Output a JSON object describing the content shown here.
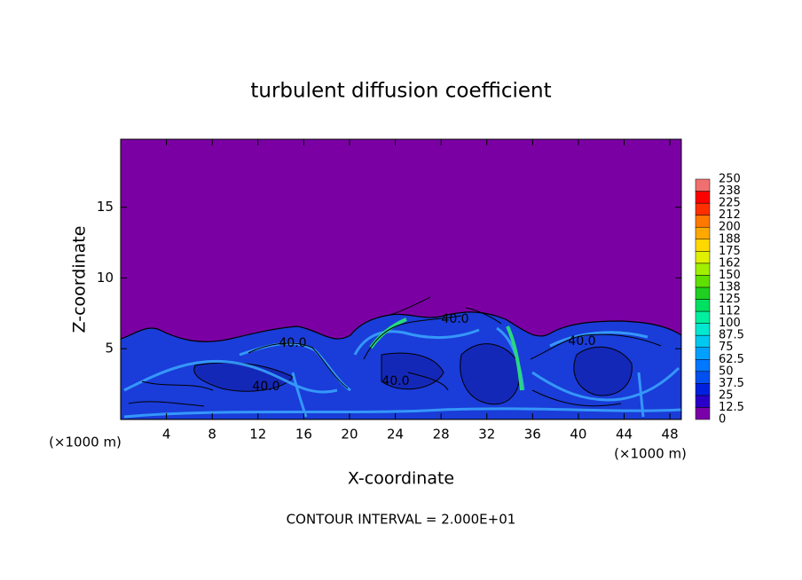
{
  "chart_data": {
    "type": "contour",
    "title": "turbulent diffusion coefficient",
    "x_label": "X-coordinate",
    "y_label": "Z-coordinate",
    "x_unit": "(×1000 m)",
    "x_unit_right": "(×1000 m)",
    "footer": "CONTOUR INTERVAL = 2.000E+01",
    "xlim": [
      0,
      49
    ],
    "ylim": [
      0,
      19.8
    ],
    "xticks": [
      4,
      8,
      12,
      16,
      20,
      24,
      28,
      32,
      36,
      40,
      44,
      48
    ],
    "yticks": [
      5,
      10,
      15
    ],
    "contour_labels": [
      "40.0",
      "40.0",
      "40.0",
      "40.0",
      "40.0"
    ],
    "colorbar": {
      "levels": [
        0,
        12.5,
        25,
        37.5,
        50,
        62.5,
        75,
        87.5,
        100,
        112,
        125,
        138,
        150,
        162,
        175,
        188,
        200,
        212,
        225,
        238,
        250
      ],
      "colors": [
        "#7a00a8",
        "#2a00c8",
        "#0020e0",
        "#0050f0",
        "#0078ff",
        "#00a0ff",
        "#00c8f0",
        "#00e8d0",
        "#00f0a0",
        "#00e060",
        "#20d020",
        "#60e000",
        "#a0f000",
        "#e0f000",
        "#ffd800",
        "#ffa800",
        "#ff7800",
        "#ff3000",
        "#ff0000",
        "#f07070"
      ]
    }
  }
}
